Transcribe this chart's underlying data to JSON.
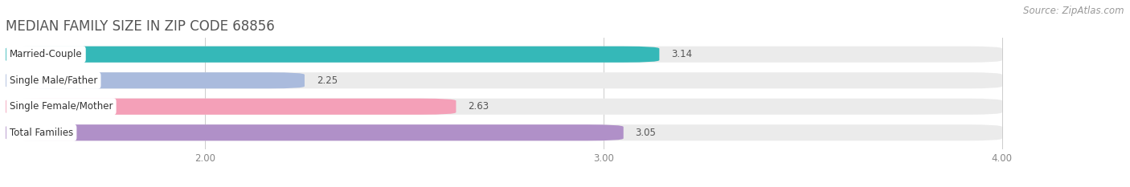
{
  "title": "MEDIAN FAMILY SIZE IN ZIP CODE 68856",
  "source": "Source: ZipAtlas.com",
  "categories": [
    "Married-Couple",
    "Single Male/Father",
    "Single Female/Mother",
    "Total Families"
  ],
  "values": [
    3.14,
    2.25,
    2.63,
    3.05
  ],
  "bar_colors": [
    "#35b8b8",
    "#aabbdd",
    "#f4a0b8",
    "#b090c8"
  ],
  "bar_bg_colors": [
    "#ebebeb",
    "#ebebeb",
    "#ebebeb",
    "#ebebeb"
  ],
  "xmin": 1.5,
  "xmax": 4.0,
  "xlim_display": [
    1.5,
    4.25
  ],
  "xticks": [
    2.0,
    3.0,
    4.0
  ],
  "xtick_labels": [
    "2.00",
    "3.00",
    "4.00"
  ],
  "background_color": "#ffffff",
  "title_color": "#555555",
  "title_fontsize": 12,
  "label_fontsize": 8.5,
  "value_fontsize": 8.5,
  "source_fontsize": 8.5,
  "bar_height": 0.62,
  "bar_gap": 0.38,
  "figsize": [
    14.06,
    2.33
  ]
}
